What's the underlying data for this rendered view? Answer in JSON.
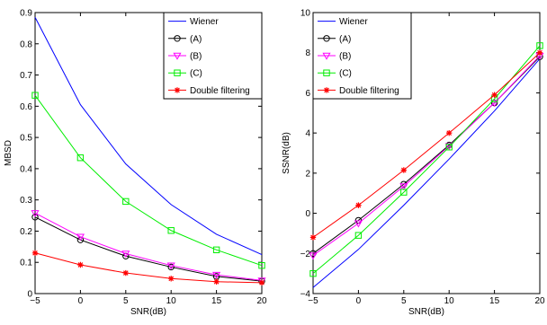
{
  "chart_data": [
    {
      "type": "line",
      "xlabel": "SNR(dB)",
      "ylabel": "MBSD",
      "xlim": [
        -5,
        20
      ],
      "ylim": [
        0,
        0.9
      ],
      "xticks": [
        "−5",
        "0",
        "5",
        "10",
        "15",
        "20"
      ],
      "yticks": [
        "0",
        "0.1",
        "0.2",
        "0.3",
        "0.4",
        "0.5",
        "0.6",
        "0.7",
        "0.8",
        "0.9"
      ],
      "legend_position": "top-right",
      "x": [
        -5,
        0,
        5,
        10,
        15,
        20
      ],
      "series": [
        {
          "name": "Wiener",
          "color": "#0000ff",
          "marker": "none",
          "values": [
            0.885,
            0.605,
            0.415,
            0.285,
            0.19,
            0.125
          ]
        },
        {
          "name": "(A)",
          "color": "#000000",
          "marker": "circle",
          "values": [
            0.245,
            0.172,
            0.12,
            0.085,
            0.055,
            0.04
          ]
        },
        {
          "name": "(B)",
          "color": "#ff00ff",
          "marker": "triangle-down",
          "values": [
            0.258,
            0.182,
            0.128,
            0.09,
            0.06,
            0.042
          ]
        },
        {
          "name": "(C)",
          "color": "#00ee00",
          "marker": "square",
          "values": [
            0.635,
            0.435,
            0.295,
            0.202,
            0.14,
            0.09
          ]
        },
        {
          "name": "Double filtering",
          "color": "#ff0000",
          "marker": "star",
          "values": [
            0.13,
            0.092,
            0.066,
            0.048,
            0.038,
            0.035
          ]
        }
      ]
    },
    {
      "type": "line",
      "xlabel": "SNR(dB)",
      "ylabel": "SSNR(dB)",
      "xlim": [
        -5,
        20
      ],
      "ylim": [
        -4,
        10
      ],
      "xticks": [
        "−5",
        "0",
        "5",
        "10",
        "15",
        "20"
      ],
      "yticks": [
        "−4",
        "−2",
        "0",
        "2",
        "4",
        "6",
        "8",
        "10"
      ],
      "legend_position": "top-left",
      "x": [
        -5,
        0,
        5,
        10,
        15,
        20
      ],
      "series": [
        {
          "name": "Wiener",
          "color": "#0000ff",
          "marker": "none",
          "values": [
            -3.7,
            -1.8,
            0.4,
            2.7,
            5.1,
            7.7
          ]
        },
        {
          "name": "(A)",
          "color": "#000000",
          "marker": "circle",
          "values": [
            -2.0,
            -0.35,
            1.45,
            3.4,
            5.5,
            7.8
          ]
        },
        {
          "name": "(B)",
          "color": "#ff00ff",
          "marker": "triangle-down",
          "values": [
            -2.1,
            -0.5,
            1.35,
            3.35,
            5.5,
            7.85
          ]
        },
        {
          "name": "(C)",
          "color": "#00ee00",
          "marker": "square",
          "values": [
            -3.0,
            -1.1,
            1.05,
            3.3,
            5.7,
            8.35
          ]
        },
        {
          "name": "Double filtering",
          "color": "#ff0000",
          "marker": "star",
          "values": [
            -1.2,
            0.4,
            2.15,
            4.0,
            5.9,
            8.0
          ]
        }
      ]
    }
  ]
}
